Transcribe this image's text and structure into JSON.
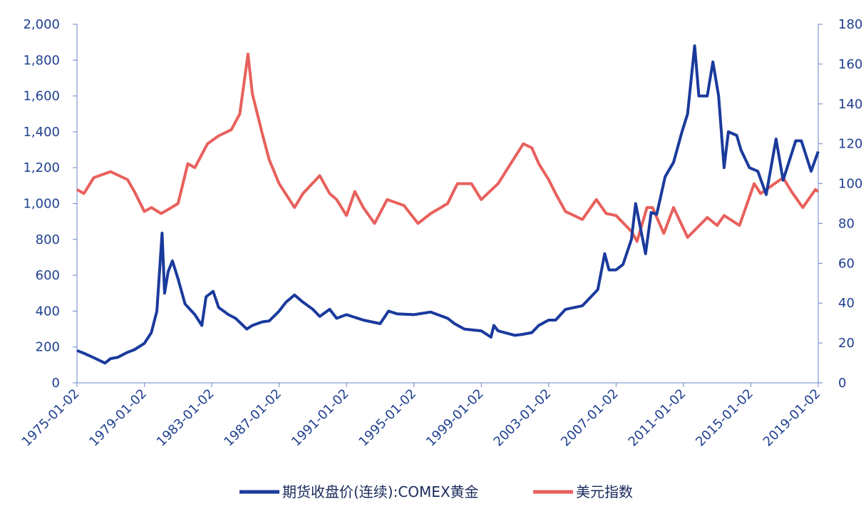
{
  "chart_data": {
    "type": "line",
    "title": "",
    "x_tick_labels": [
      "1975-01-02",
      "1979-01-02",
      "1983-01-02",
      "1987-01-02",
      "1991-01-02",
      "1995-01-02",
      "1999-01-02",
      "2003-01-02",
      "2007-01-02",
      "2011-01-02",
      "2015-01-02",
      "2019-01-02"
    ],
    "x_range": [
      "1975-01-02",
      "2019-01-02"
    ],
    "y_left": {
      "ticks": [
        "0",
        "200",
        "400",
        "600",
        "800",
        "1,000",
        "1,200",
        "1,400",
        "1,600",
        "1,800",
        "2,000"
      ],
      "range": [
        0,
        2000
      ]
    },
    "y_right": {
      "ticks": [
        "0",
        "20",
        "40",
        "60",
        "80",
        "100",
        "120",
        "140",
        "160",
        "180"
      ],
      "range": [
        0,
        180
      ]
    },
    "grid": false,
    "legend_position": "bottom",
    "series": [
      {
        "name": "期货收盘价(连续):COMEX黄金",
        "axis": "left",
        "color": "#1a3a9c",
        "points": [
          [
            "1975-01-02",
            180
          ],
          [
            "1975-06-01",
            165
          ],
          [
            "1976-01-01",
            140
          ],
          [
            "1976-09-01",
            110
          ],
          [
            "1977-01-01",
            135
          ],
          [
            "1977-06-01",
            142
          ],
          [
            "1978-01-01",
            170
          ],
          [
            "1978-06-01",
            185
          ],
          [
            "1979-01-01",
            220
          ],
          [
            "1979-06-01",
            280
          ],
          [
            "1979-10-01",
            400
          ],
          [
            "1980-01-21",
            835
          ],
          [
            "1980-03-15",
            500
          ],
          [
            "1980-06-01",
            620
          ],
          [
            "1980-09-01",
            680
          ],
          [
            "1981-01-01",
            580
          ],
          [
            "1981-06-01",
            440
          ],
          [
            "1982-01-01",
            380
          ],
          [
            "1982-06-01",
            320
          ],
          [
            "1982-09-01",
            480
          ],
          [
            "1983-02-01",
            510
          ],
          [
            "1983-06-01",
            420
          ],
          [
            "1984-01-01",
            380
          ],
          [
            "1984-06-01",
            360
          ],
          [
            "1985-02-01",
            300
          ],
          [
            "1985-06-01",
            320
          ],
          [
            "1986-01-01",
            340
          ],
          [
            "1986-06-01",
            345
          ],
          [
            "1987-01-01",
            400
          ],
          [
            "1987-06-01",
            450
          ],
          [
            "1987-12-01",
            490
          ],
          [
            "1988-06-01",
            450
          ],
          [
            "1989-01-01",
            410
          ],
          [
            "1989-06-01",
            370
          ],
          [
            "1990-01-01",
            410
          ],
          [
            "1990-06-01",
            360
          ],
          [
            "1991-01-01",
            380
          ],
          [
            "1992-01-01",
            350
          ],
          [
            "1993-01-01",
            330
          ],
          [
            "1993-07-01",
            400
          ],
          [
            "1994-01-01",
            385
          ],
          [
            "1995-01-01",
            380
          ],
          [
            "1996-01-01",
            395
          ],
          [
            "1997-01-01",
            360
          ],
          [
            "1997-06-01",
            330
          ],
          [
            "1998-01-01",
            300
          ],
          [
            "1999-01-01",
            290
          ],
          [
            "1999-08-01",
            255
          ],
          [
            "1999-10-01",
            320
          ],
          [
            "2000-01-01",
            290
          ],
          [
            "2001-01-01",
            265
          ],
          [
            "2001-06-01",
            270
          ],
          [
            "2002-01-01",
            280
          ],
          [
            "2002-06-01",
            320
          ],
          [
            "2003-01-01",
            350
          ],
          [
            "2003-06-01",
            350
          ],
          [
            "2004-01-01",
            410
          ],
          [
            "2005-01-01",
            430
          ],
          [
            "2005-12-01",
            520
          ],
          [
            "2006-05-01",
            720
          ],
          [
            "2006-08-01",
            630
          ],
          [
            "2007-01-01",
            630
          ],
          [
            "2007-06-01",
            660
          ],
          [
            "2007-12-01",
            800
          ],
          [
            "2008-03-01",
            1000
          ],
          [
            "2008-08-01",
            800
          ],
          [
            "2008-10-01",
            720
          ],
          [
            "2009-02-01",
            950
          ],
          [
            "2009-06-01",
            940
          ],
          [
            "2009-12-01",
            1150
          ],
          [
            "2010-06-01",
            1230
          ],
          [
            "2010-12-01",
            1400
          ],
          [
            "2011-04-01",
            1500
          ],
          [
            "2011-09-01",
            1880
          ],
          [
            "2011-12-01",
            1600
          ],
          [
            "2012-06-01",
            1600
          ],
          [
            "2012-10-01",
            1790
          ],
          [
            "2013-02-01",
            1600
          ],
          [
            "2013-06-01",
            1200
          ],
          [
            "2013-09-01",
            1400
          ],
          [
            "2014-03-01",
            1380
          ],
          [
            "2014-06-01",
            1300
          ],
          [
            "2014-12-01",
            1200
          ],
          [
            "2015-06-01",
            1180
          ],
          [
            "2015-12-01",
            1050
          ],
          [
            "2016-07-01",
            1360
          ],
          [
            "2016-12-01",
            1130
          ],
          [
            "2017-09-01",
            1350
          ],
          [
            "2018-01-01",
            1350
          ],
          [
            "2018-08-01",
            1180
          ],
          [
            "2019-01-01",
            1290
          ]
        ]
      },
      {
        "name": "美元指数",
        "axis": "right",
        "color": "#e8605c",
        "points": [
          [
            "1975-01-02",
            97
          ],
          [
            "1975-06-01",
            95
          ],
          [
            "1976-01-01",
            103
          ],
          [
            "1977-01-01",
            106
          ],
          [
            "1978-01-01",
            102
          ],
          [
            "1978-06-01",
            96
          ],
          [
            "1979-01-01",
            86
          ],
          [
            "1979-06-01",
            88
          ],
          [
            "1980-01-01",
            85
          ],
          [
            "1980-06-01",
            87
          ],
          [
            "1981-01-01",
            90
          ],
          [
            "1981-08-01",
            110
          ],
          [
            "1982-01-01",
            108
          ],
          [
            "1982-10-01",
            120
          ],
          [
            "1983-06-01",
            124
          ],
          [
            "1984-03-01",
            127
          ],
          [
            "1984-09-01",
            135
          ],
          [
            "1985-02-25",
            165
          ],
          [
            "1985-06-01",
            145
          ],
          [
            "1986-01-01",
            125
          ],
          [
            "1986-06-01",
            112
          ],
          [
            "1987-01-01",
            100
          ],
          [
            "1987-12-01",
            88
          ],
          [
            "1988-06-01",
            95
          ],
          [
            "1989-06-01",
            104
          ],
          [
            "1990-01-01",
            95
          ],
          [
            "1990-06-01",
            92
          ],
          [
            "1991-01-01",
            84
          ],
          [
            "1991-07-01",
            96
          ],
          [
            "1992-01-01",
            88
          ],
          [
            "1992-09-01",
            80
          ],
          [
            "1993-06-01",
            92
          ],
          [
            "1994-06-01",
            89
          ],
          [
            "1995-04-01",
            80
          ],
          [
            "1996-01-01",
            85
          ],
          [
            "1997-01-01",
            90
          ],
          [
            "1997-08-01",
            100
          ],
          [
            "1998-06-01",
            100
          ],
          [
            "1999-01-01",
            92
          ],
          [
            "2000-01-01",
            100
          ],
          [
            "2001-07-01",
            120
          ],
          [
            "2002-01-01",
            118
          ],
          [
            "2002-06-01",
            110
          ],
          [
            "2003-01-01",
            102
          ],
          [
            "2003-06-01",
            95
          ],
          [
            "2004-01-01",
            86
          ],
          [
            "2005-01-01",
            82
          ],
          [
            "2005-11-01",
            92
          ],
          [
            "2006-06-01",
            85
          ],
          [
            "2007-01-01",
            84
          ],
          [
            "2007-12-01",
            76
          ],
          [
            "2008-04-01",
            71
          ],
          [
            "2008-11-01",
            88
          ],
          [
            "2009-03-01",
            88
          ],
          [
            "2009-11-01",
            75
          ],
          [
            "2010-06-01",
            88
          ],
          [
            "2011-04-01",
            73
          ],
          [
            "2012-06-01",
            83
          ],
          [
            "2013-01-01",
            79
          ],
          [
            "2013-06-01",
            84
          ],
          [
            "2014-05-01",
            79
          ],
          [
            "2015-03-15",
            100
          ],
          [
            "2015-08-01",
            95
          ],
          [
            "2016-12-01",
            103
          ],
          [
            "2017-06-01",
            96
          ],
          [
            "2018-02-01",
            88
          ],
          [
            "2018-11-01",
            97
          ],
          [
            "2019-01-01",
            96
          ]
        ]
      }
    ]
  }
}
